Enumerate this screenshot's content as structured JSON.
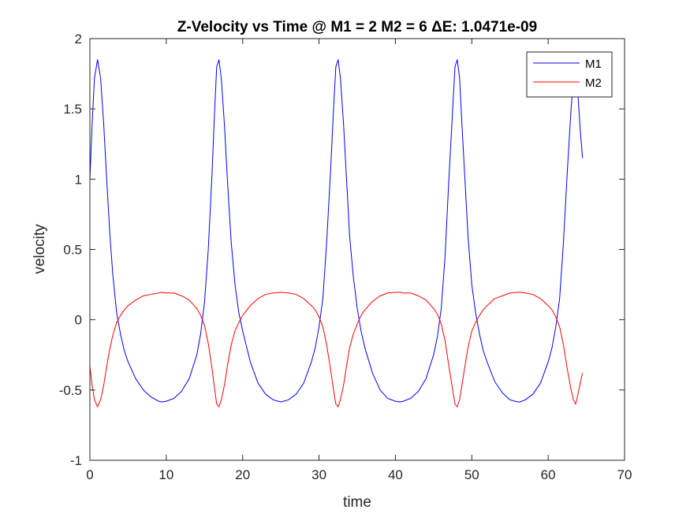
{
  "chart_data": {
    "type": "line",
    "title": "Z-Velocity vs Time @ M1 = 2 M2 = 6 ΔE: 1.0471e-09",
    "xlabel": "time",
    "ylabel": "velocity",
    "xlim": [
      0,
      70
    ],
    "ylim": [
      -1,
      2
    ],
    "xticks": [
      0,
      10,
      20,
      30,
      40,
      50,
      60,
      70
    ],
    "yticks": [
      -1,
      -0.5,
      0,
      0.5,
      1,
      1.5,
      2
    ],
    "xtick_labels": [
      "0",
      "10",
      "20",
      "30",
      "40",
      "50",
      "60",
      "70"
    ],
    "ytick_labels": [
      "-1",
      "-0.5",
      "0",
      "0.5",
      "1",
      "1.5",
      "2"
    ],
    "grid": false,
    "legend_position": "top-right",
    "series": [
      {
        "name": "M1",
        "color": "#0000ff",
        "x": [
          0,
          0.3,
          0.6,
          1.0,
          1.4,
          1.8,
          2.2,
          2.6,
          3.0,
          3.5,
          4.0,
          4.5,
          5.0,
          6.0,
          7.0,
          8.0,
          9.0,
          9.4,
          10.0,
          11.0,
          12.0,
          13.0,
          14.0,
          14.5,
          15.0,
          15.5,
          16.0,
          16.3,
          16.6,
          16.9,
          17.2,
          17.6,
          18.0,
          18.5,
          19.0,
          19.5,
          20.0,
          21.0,
          22.0,
          23.0,
          24.0,
          25.0,
          26.0,
          27.0,
          28.0,
          29.0,
          29.5,
          30.0,
          30.5,
          31.0,
          31.5,
          31.9,
          32.2,
          32.5,
          32.8,
          33.2,
          33.6,
          34.0,
          34.5,
          35.0,
          35.5,
          36.0,
          37.0,
          38.0,
          39.0,
          40.0,
          40.6,
          41.0,
          42.0,
          43.0,
          44.0,
          45.0,
          45.5,
          46.0,
          46.5,
          47.0,
          47.5,
          47.8,
          48.1,
          48.4,
          48.7,
          49.1,
          49.5,
          50.0,
          50.5,
          51.0,
          51.5,
          52.0,
          53.0,
          54.0,
          55.0,
          56.0,
          56.3,
          57.0,
          58.0,
          59.0,
          60.0,
          60.5,
          61.0,
          61.5,
          62.0,
          62.5,
          63.0,
          63.3,
          63.6,
          63.9,
          64.2,
          64.5
        ],
        "y": [
          1.0,
          1.4,
          1.72,
          1.85,
          1.72,
          1.4,
          1.0,
          0.62,
          0.32,
          0.05,
          -0.1,
          -0.22,
          -0.3,
          -0.42,
          -0.5,
          -0.55,
          -0.58,
          -0.585,
          -0.58,
          -0.56,
          -0.51,
          -0.42,
          -0.25,
          -0.1,
          0.12,
          0.5,
          1.05,
          1.45,
          1.8,
          1.85,
          1.72,
          1.4,
          1.0,
          0.55,
          0.25,
          0.05,
          -0.08,
          -0.3,
          -0.45,
          -0.53,
          -0.57,
          -0.585,
          -0.57,
          -0.53,
          -0.45,
          -0.3,
          -0.2,
          -0.05,
          0.15,
          0.55,
          1.05,
          1.5,
          1.8,
          1.85,
          1.72,
          1.4,
          1.0,
          0.6,
          0.3,
          0.08,
          -0.08,
          -0.2,
          -0.38,
          -0.5,
          -0.56,
          -0.58,
          -0.585,
          -0.58,
          -0.56,
          -0.51,
          -0.42,
          -0.25,
          -0.12,
          0.08,
          0.45,
          1.0,
          1.5,
          1.8,
          1.85,
          1.72,
          1.4,
          1.0,
          0.6,
          0.25,
          0.05,
          -0.1,
          -0.22,
          -0.3,
          -0.44,
          -0.52,
          -0.57,
          -0.585,
          -0.585,
          -0.57,
          -0.53,
          -0.45,
          -0.3,
          -0.2,
          -0.05,
          0.15,
          0.55,
          1.05,
          1.5,
          1.7,
          1.78,
          1.6,
          1.35,
          1.15
        ]
      },
      {
        "name": "M2",
        "color": "#ff0000",
        "x": [
          0,
          0.3,
          0.6,
          1.0,
          1.4,
          1.8,
          2.2,
          2.6,
          3.0,
          3.5,
          4.0,
          4.5,
          5.0,
          6.0,
          7.0,
          8.0,
          9.0,
          9.4,
          10.0,
          11.0,
          12.0,
          13.0,
          14.0,
          14.5,
          15.0,
          15.5,
          16.0,
          16.3,
          16.6,
          16.9,
          17.2,
          17.6,
          18.0,
          18.5,
          19.0,
          19.5,
          20.0,
          21.0,
          22.0,
          23.0,
          24.0,
          25.0,
          26.0,
          27.0,
          28.0,
          29.0,
          29.5,
          30.0,
          30.5,
          31.0,
          31.5,
          31.9,
          32.2,
          32.5,
          32.8,
          33.2,
          33.6,
          34.0,
          34.5,
          35.0,
          35.5,
          36.0,
          37.0,
          38.0,
          39.0,
          40.0,
          40.6,
          41.0,
          42.0,
          43.0,
          44.0,
          45.0,
          45.5,
          46.0,
          46.5,
          47.0,
          47.5,
          47.8,
          48.1,
          48.4,
          48.7,
          49.1,
          49.5,
          50.0,
          50.5,
          51.0,
          51.5,
          52.0,
          53.0,
          54.0,
          55.0,
          56.0,
          56.3,
          57.0,
          58.0,
          59.0,
          60.0,
          60.5,
          61.0,
          61.5,
          62.0,
          62.5,
          63.0,
          63.3,
          63.6,
          63.9,
          64.2,
          64.5
        ],
        "y": [
          -0.33,
          -0.47,
          -0.57,
          -0.62,
          -0.57,
          -0.47,
          -0.33,
          -0.21,
          -0.11,
          -0.02,
          0.03,
          0.07,
          0.1,
          0.14,
          0.17,
          0.18,
          0.19,
          0.195,
          0.19,
          0.19,
          0.17,
          0.14,
          0.08,
          0.03,
          -0.04,
          -0.17,
          -0.35,
          -0.48,
          -0.6,
          -0.62,
          -0.57,
          -0.47,
          -0.33,
          -0.18,
          -0.08,
          -0.02,
          0.03,
          0.1,
          0.15,
          0.18,
          0.19,
          0.195,
          0.19,
          0.18,
          0.15,
          0.1,
          0.07,
          0.02,
          -0.05,
          -0.18,
          -0.35,
          -0.5,
          -0.6,
          -0.62,
          -0.57,
          -0.47,
          -0.33,
          -0.2,
          -0.1,
          -0.03,
          0.03,
          0.07,
          0.13,
          0.17,
          0.19,
          0.195,
          0.195,
          0.19,
          0.19,
          0.17,
          0.14,
          0.08,
          0.04,
          -0.03,
          -0.15,
          -0.33,
          -0.5,
          -0.6,
          -0.62,
          -0.57,
          -0.47,
          -0.33,
          -0.2,
          -0.08,
          -0.02,
          0.03,
          0.07,
          0.1,
          0.15,
          0.17,
          0.19,
          0.195,
          0.195,
          0.19,
          0.18,
          0.15,
          0.1,
          0.07,
          0.02,
          -0.05,
          -0.18,
          -0.35,
          -0.5,
          -0.57,
          -0.6,
          -0.53,
          -0.45,
          -0.38
        ]
      }
    ]
  }
}
